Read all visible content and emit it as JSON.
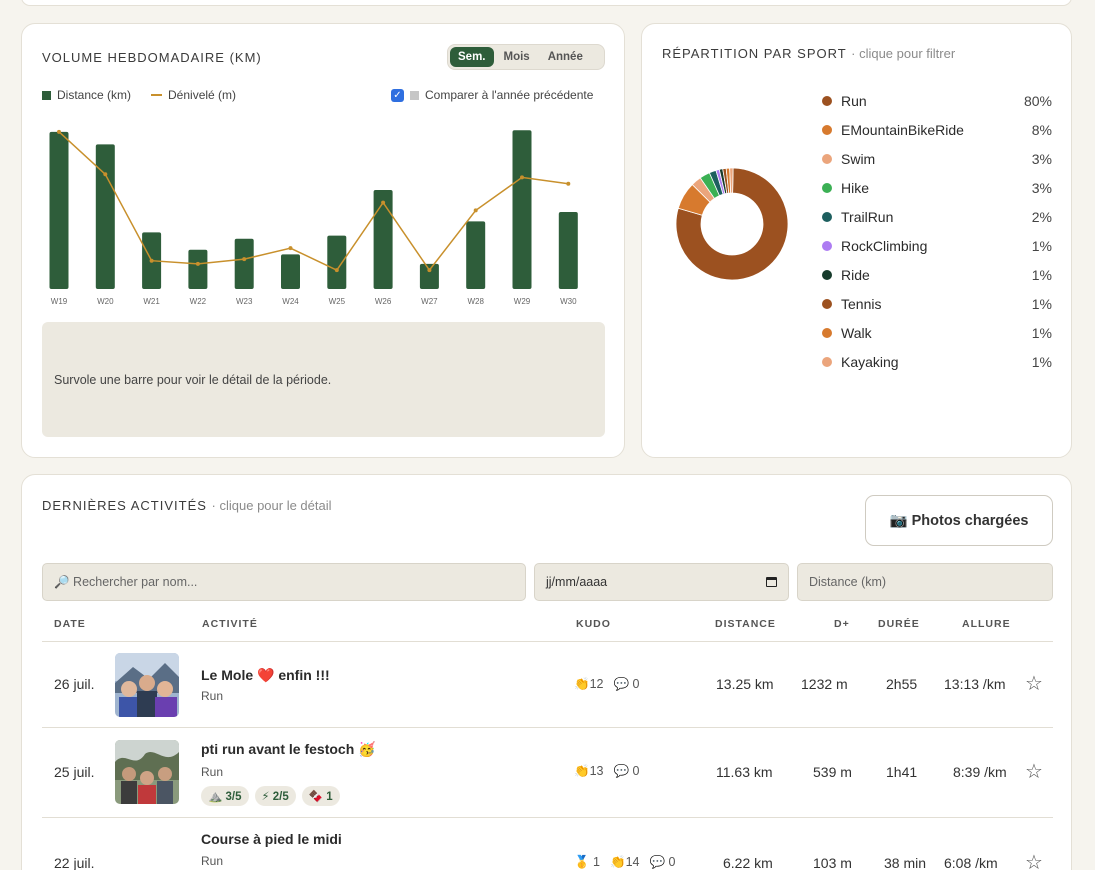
{
  "volume": {
    "title": "VOLUME HEBDOMADAIRE (KM)",
    "tabs": [
      "Sem.",
      "Mois",
      "Année"
    ],
    "active_tab": "Sem.",
    "legend_distance": "Distance (km)",
    "legend_elevation": "Dénivelé (m)",
    "compare_label": "Comparer à l'année précédente",
    "compare_checked": true,
    "detail_text": "Survole une barre pour voir le détail de la période."
  },
  "chart_data": {
    "type": "bar",
    "categories": [
      "W19",
      "W20",
      "W21",
      "W22",
      "W23",
      "W24",
      "W25",
      "W26",
      "W27",
      "W28",
      "W29",
      "W30"
    ],
    "series": [
      {
        "name": "Distance (km)",
        "type": "bar",
        "color": "#2e5d3a",
        "values": [
          100,
          92,
          36,
          25,
          32,
          22,
          34,
          63,
          16,
          43,
          101,
          49
        ]
      },
      {
        "name": "Dénivelé (m)",
        "type": "line",
        "color": "#c8902c",
        "values": [
          100,
          73,
          18,
          16,
          19,
          26,
          12,
          55,
          12,
          50,
          71,
          67
        ]
      }
    ],
    "ylim": [
      0,
      105
    ],
    "grid": false
  },
  "sport": {
    "title": "RÉPARTITION PAR SPORT",
    "hint": "· clique pour filtrer",
    "items": [
      {
        "name": "Run",
        "pct": "80%",
        "value": 80,
        "color": "#9c5120"
      },
      {
        "name": "EMountainBikeRide",
        "pct": "8%",
        "value": 8,
        "color": "#d77a2e"
      },
      {
        "name": "Swim",
        "pct": "3%",
        "value": 3,
        "color": "#eba57c"
      },
      {
        "name": "Hike",
        "pct": "3%",
        "value": 3,
        "color": "#3bb054"
      },
      {
        "name": "TrailRun",
        "pct": "2%",
        "value": 2,
        "color": "#1d5f5f"
      },
      {
        "name": "RockClimbing",
        "pct": "1%",
        "value": 1,
        "color": "#ad7cf2"
      },
      {
        "name": "Ride",
        "pct": "1%",
        "value": 1,
        "color": "#173b2c"
      },
      {
        "name": "Tennis",
        "pct": "1%",
        "value": 1,
        "color": "#9c5120"
      },
      {
        "name": "Walk",
        "pct": "1%",
        "value": 1,
        "color": "#d77a2e"
      },
      {
        "name": "Kayaking",
        "pct": "1%",
        "value": 1,
        "color": "#eba57c"
      }
    ]
  },
  "activities": {
    "title": "DERNIÈRES ACTIVITÉS",
    "hint": "· clique pour le détail",
    "photos_button": "Photos chargées",
    "photos_icon": "camera-icon",
    "search_placeholder": "🔎 Rechercher par nom...",
    "date_placeholder": "jj/mm/aaaa",
    "distance_placeholder": "Distance (km)",
    "columns": {
      "date": "DATE",
      "activity": "ACTIVITÉ",
      "kudo": "KUDO",
      "distance": "DISTANCE",
      "elevation": "D+",
      "duration": "DURÉE",
      "pace": "ALLURE"
    },
    "rows": [
      {
        "date": "26 juil.",
        "name": "Le Mole ❤️ enfin !!!",
        "type": "Run",
        "kudos": "👏12",
        "comments": "💬 0",
        "distance": "13.25 km",
        "elevation": "1232 m",
        "duration": "2h55",
        "pace": "13:13 /km",
        "star": "☆"
      },
      {
        "date": "25 juil.",
        "name": "pti run avant le festoch 🥳",
        "type": "Run",
        "kudos": "👏13",
        "comments": "💬 0",
        "badges": [
          "⛰️ 3/5",
          "⚡ 2/5",
          "🍫 1"
        ],
        "distance": "11.63 km",
        "elevation": "539 m",
        "duration": "1h41",
        "pace": "8:39 /km",
        "star": "☆"
      },
      {
        "date": "22 juil.",
        "name": "Course à pied le midi",
        "type": "Run",
        "medal": "🥇 1",
        "kudos": "👏14",
        "comments": "💬 0",
        "distance": "6.22 km",
        "elevation": "103 m",
        "duration": "38 min",
        "pace": "6:08 /km",
        "star": "☆"
      }
    ]
  }
}
